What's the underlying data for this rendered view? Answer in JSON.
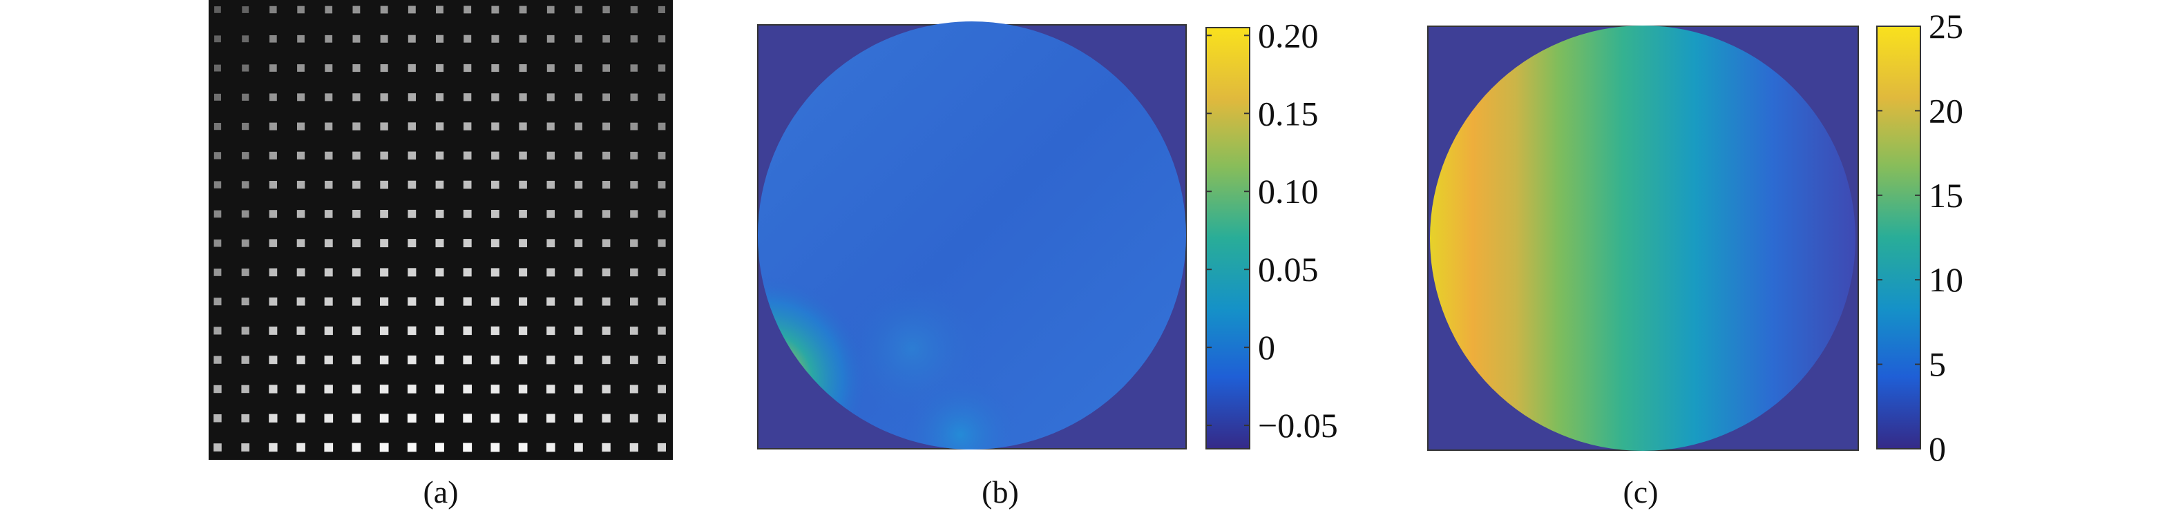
{
  "panels": [
    {
      "id": "a",
      "caption": "(a)",
      "type": "grid_of_spots",
      "spot_rows": 16,
      "spot_cols": 17,
      "background_color": "#161616"
    },
    {
      "id": "b",
      "caption": "(b)",
      "type": "circular_map",
      "colorbar": {
        "range": [
          -0.065,
          0.205
        ],
        "tick_values": [
          0.2,
          0.15,
          0.1,
          0.05,
          0,
          -0.05
        ],
        "tick_labels": [
          "0.20",
          "0.15",
          "0.10",
          "0.05",
          "0",
          "−0.05"
        ]
      }
    },
    {
      "id": "c",
      "caption": "(c)",
      "type": "circular_map",
      "colorbar": {
        "range": [
          0,
          25
        ],
        "tick_values": [
          25,
          20,
          15,
          10,
          5,
          0
        ],
        "tick_labels": [
          "25",
          "20",
          "15",
          "10",
          "5",
          "0"
        ]
      }
    }
  ],
  "colormap": "parula",
  "colormap_stops": [
    "#352a87",
    "#1f5fd6",
    "#1591c8",
    "#29ad98",
    "#88bd5a",
    "#e0b93d",
    "#f9e11d"
  ],
  "mask_color": "#3e3f96"
}
